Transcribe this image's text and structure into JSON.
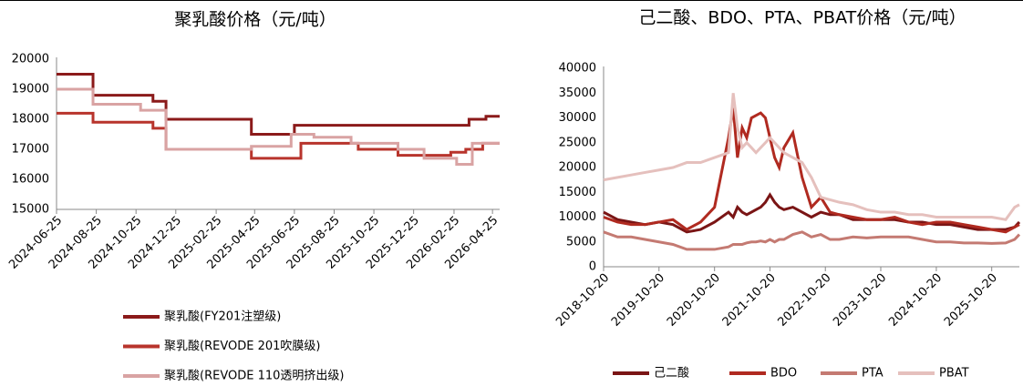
{
  "chart_data": [
    {
      "type": "line",
      "step": "post",
      "title": "聚乳酸价格（元/吨）",
      "legend": "bottom",
      "xlim": [
        "2024-06-25",
        "2026-05-06"
      ],
      "xticks": [
        "2024-06-25",
        "2024-08-25",
        "2024-10-25",
        "2024-12-25",
        "2025-02-25",
        "2025-04-25",
        "2025-06-25",
        "2025-08-25",
        "2025-10-25",
        "2025-12-25",
        "2026-02-25",
        "2026-04-25"
      ],
      "ylim": [
        15000,
        20000
      ],
      "yticks": [
        15000,
        16000,
        17000,
        18000,
        19000,
        20000
      ],
      "series": [
        {
          "name": "聚乳酸(FY201注塑级)",
          "color": "#8b1a1a",
          "x": [
            "2024-06-25",
            "2024-08-20",
            "2024-11-20",
            "2024-12-10",
            "2025-04-20",
            "2025-06-25",
            "2026-03-20",
            "2026-04-15",
            "2026-05-06"
          ],
          "values": [
            19500,
            18800,
            18600,
            18000,
            17500,
            17800,
            18000,
            18100,
            18100
          ]
        },
        {
          "name": "聚乳酸(REVODE 201吹膜级)",
          "color": "#b8342c",
          "x": [
            "2024-06-25",
            "2024-08-20",
            "2024-11-20",
            "2024-12-10",
            "2025-04-20",
            "2025-07-05",
            "2025-10-01",
            "2025-12-01",
            "2026-02-20",
            "2026-03-15",
            "2026-04-10",
            "2026-05-06"
          ],
          "values": [
            18200,
            17900,
            17700,
            17000,
            16700,
            17200,
            17000,
            16800,
            16900,
            17000,
            17200,
            17200
          ]
        },
        {
          "name": "聚乳酸(REVODE 110透明挤出级)",
          "color": "#d9a3a3",
          "x": [
            "2024-06-25",
            "2024-08-20",
            "2024-11-01",
            "2024-12-10",
            "2025-04-20",
            "2025-06-20",
            "2025-07-25",
            "2025-09-20",
            "2025-12-01",
            "2026-01-10",
            "2026-03-01",
            "2026-03-25",
            "2026-05-06"
          ],
          "values": [
            19000,
            18500,
            18300,
            17000,
            17100,
            17500,
            17400,
            17200,
            17000,
            16700,
            16500,
            17200,
            17200
          ]
        }
      ]
    },
    {
      "type": "line",
      "title": "己二酸、BDO、PTA、PBAT价格（元/吨）",
      "legend": "bottom",
      "xlim": [
        "2018-10-20",
        "2026-04-20"
      ],
      "xticks": [
        "2018-10-20",
        "2019-10-20",
        "2020-10-20",
        "2021-10-20",
        "2022-10-20",
        "2023-10-20",
        "2024-10-20",
        "2025-10-20"
      ],
      "ylim": [
        0,
        40000
      ],
      "yticks": [
        0,
        5000,
        10000,
        15000,
        20000,
        25000,
        30000,
        35000,
        40000
      ],
      "x": [
        "2018-10-20",
        "2019-01-20",
        "2019-04-20",
        "2019-07-20",
        "2019-10-20",
        "2020-01-20",
        "2020-04-20",
        "2020-07-20",
        "2020-10-20",
        "2021-01-20",
        "2021-02-20",
        "2021-03-20",
        "2021-04-20",
        "2021-05-20",
        "2021-06-20",
        "2021-07-20",
        "2021-08-20",
        "2021-09-20",
        "2021-10-20",
        "2021-11-20",
        "2021-12-20",
        "2022-01-20",
        "2022-03-20",
        "2022-05-20",
        "2022-07-20",
        "2022-09-20",
        "2022-11-20",
        "2023-01-20",
        "2023-04-20",
        "2023-07-20",
        "2023-10-20",
        "2024-01-20",
        "2024-04-20",
        "2024-07-20",
        "2024-10-20",
        "2025-01-20",
        "2025-04-20",
        "2025-07-20",
        "2025-10-20",
        "2026-01-20",
        "2026-03-20",
        "2026-04-20"
      ],
      "series": [
        {
          "name": "己二酸",
          "color": "#7a1515",
          "values": [
            11000,
            9500,
            9000,
            8500,
            9000,
            8500,
            7000,
            7500,
            9000,
            11000,
            10000,
            12000,
            11000,
            10500,
            11000,
            11500,
            12000,
            13000,
            14500,
            13000,
            12000,
            11500,
            12000,
            11000,
            10000,
            11000,
            10500,
            10500,
            9500,
            9500,
            9500,
            9500,
            9000,
            9000,
            8500,
            8500,
            8000,
            7500,
            7500,
            7500,
            8000,
            9000
          ]
        },
        {
          "name": "BDO",
          "color": "#b02a20",
          "values": [
            10000,
            9000,
            8500,
            8500,
            9000,
            9500,
            7500,
            9000,
            12000,
            26000,
            32000,
            22000,
            28000,
            26000,
            30000,
            30500,
            31000,
            30000,
            26000,
            22000,
            20000,
            24000,
            27000,
            18000,
            12000,
            14000,
            11000,
            10500,
            10000,
            9500,
            9500,
            10000,
            9000,
            8500,
            9000,
            9000,
            8500,
            8000,
            7500,
            7000,
            8000,
            8500
          ]
        },
        {
          "name": "PTA",
          "color": "#c47a72",
          "values": [
            7000,
            6000,
            6000,
            5500,
            5000,
            4500,
            3500,
            3500,
            3500,
            4000,
            4500,
            4500,
            4500,
            4800,
            5000,
            5000,
            5200,
            5000,
            5500,
            5000,
            5500,
            5500,
            6500,
            7000,
            6000,
            6500,
            5500,
            5500,
            6000,
            5800,
            6000,
            6000,
            6000,
            5500,
            5000,
            5000,
            4800,
            4800,
            4700,
            4800,
            5500,
            6500
          ]
        },
        {
          "name": "PBAT",
          "color": "#e5c0bd",
          "values": [
            17500,
            18000,
            18500,
            19000,
            19500,
            20000,
            21000,
            21000,
            22000,
            23000,
            35000,
            28000,
            24000,
            25000,
            24000,
            23000,
            24000,
            25000,
            26000,
            25000,
            24000,
            23000,
            22000,
            21000,
            18000,
            14000,
            13500,
            13000,
            12500,
            11500,
            11000,
            11000,
            10500,
            10500,
            10000,
            10000,
            10000,
            10000,
            10000,
            9500,
            12000,
            12500
          ]
        }
      ]
    }
  ]
}
